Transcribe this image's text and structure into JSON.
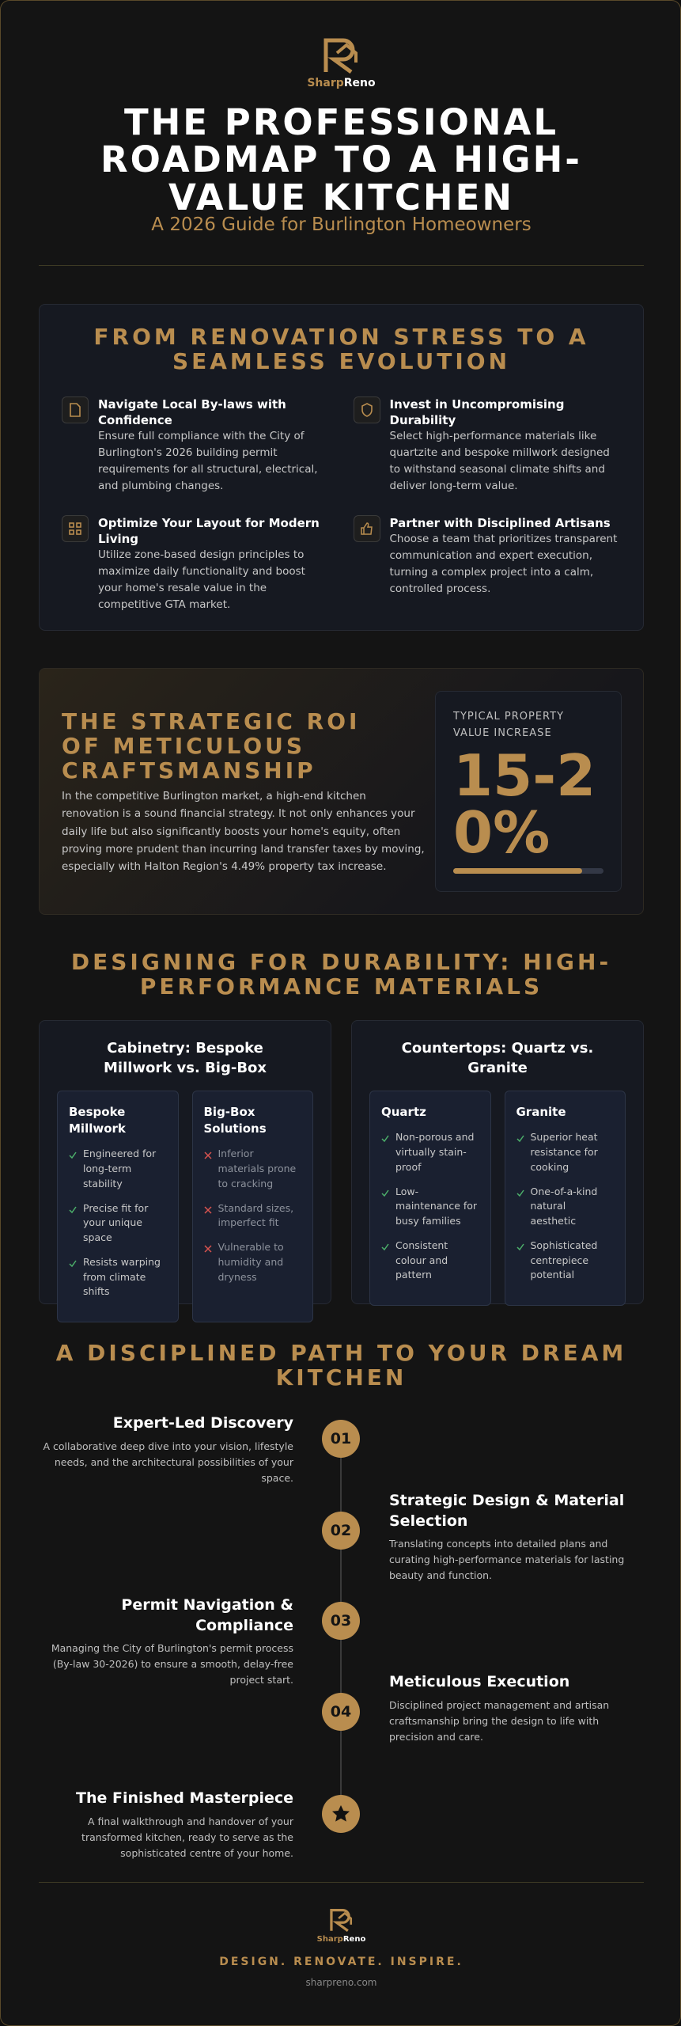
{
  "header": {
    "brand_first": "Sharp",
    "brand_second": "Reno",
    "title": "THE PROFESSIONAL ROADMAP TO A HIGH-VALUE KITCHEN",
    "subtitle": "A 2026 Guide for Burlington Homeowners"
  },
  "evolution": {
    "heading": "FROM RENOVATION STRESS TO A SEAMLESS EVOLUTION",
    "items": [
      {
        "title": "Navigate Local By-laws with Confidence",
        "text": "Ensure full compliance with the City of Burlington's 2026 building permit requirements for all structural, electrical, and plumbing changes."
      },
      {
        "title": "Invest in Uncompromising Durability",
        "text": "Select high-performance materials like quartzite and bespoke millwork designed to withstand seasonal climate shifts and deliver long-term value."
      },
      {
        "title": "Optimize Your Layout for Modern Living",
        "text": "Utilize zone-based design principles to maximize daily functionality and boost your home's resale value in the competitive GTA market."
      },
      {
        "title": "Partner with Disciplined Artisans",
        "text": "Choose a team that prioritizes transparent communication and expert execution, turning a complex project into a calm, controlled process."
      }
    ]
  },
  "roi": {
    "heading": "THE STRATEGIC ROI OF METICULOUS CRAFTSMANSHIP",
    "text": "In the competitive Burlington market, a high-end kitchen renovation is a sound financial strategy. It not only enhances your daily life but also significantly boosts your home's equity, often proving more prudent than incurring land transfer taxes by moving, especially with Halton Region's 4.49% property tax increase.",
    "stat_label": "TYPICAL PROPERTY VALUE INCREASE",
    "stat_value": "15-20%"
  },
  "materials": {
    "heading": "DESIGNING FOR DURABILITY: HIGH-PERFORMANCE MATERIALS",
    "comparisons": [
      {
        "title": "Cabinetry: Bespoke Millwork vs. Big-Box",
        "options": [
          {
            "name": "Bespoke Millwork",
            "marker_color": "#4caf6a",
            "points": [
              "Engineered for long-term stability",
              "Precise fit for your unique space",
              "Resists warping from climate shifts"
            ]
          },
          {
            "name": "Big-Box Solutions",
            "marker_color": "#d9534f",
            "points": [
              "Inferior materials prone to cracking",
              "Standard sizes, imperfect fit",
              "Vulnerable to humidity and dryness"
            ]
          }
        ]
      },
      {
        "title": "Countertops: Quartz vs. Granite",
        "options": [
          {
            "name": "Quartz",
            "marker_color": "#4caf6a",
            "points": [
              "Non-porous and virtually stain-proof",
              "Low-maintenance for busy families",
              "Consistent colour and pattern"
            ]
          },
          {
            "name": "Granite",
            "marker_color": "#4caf6a",
            "points": [
              "Superior heat resistance for cooking",
              "One-of-a-kind natural aesthetic",
              "Sophisticated centrepiece potential"
            ]
          }
        ]
      }
    ]
  },
  "path": {
    "heading": "A DISCIPLINED PATH TO YOUR DREAM KITCHEN",
    "steps": [
      {
        "number": "01",
        "title": "Expert-Led Discovery",
        "text": "A collaborative deep dive into your vision, lifestyle needs, and the architectural possibilities of your space."
      },
      {
        "number": "02",
        "title": "Strategic Design & Material Selection",
        "text": "Translating concepts into detailed plans and curating high-performance materials for lasting beauty and function."
      },
      {
        "number": "03",
        "title": "Permit Navigation & Compliance",
        "text": "Managing the City of Burlington's permit process (By-law 30-2026) to ensure a smooth, delay-free project start."
      },
      {
        "number": "04",
        "title": "Meticulous Execution",
        "text": "Disciplined project management and artisan craftsmanship bring the design to life with precision and care."
      },
      {
        "title": "The Finished Masterpiece",
        "text": "A final walkthrough and handover of your transformed kitchen, ready to serve as the sophisticated centre of your home."
      }
    ]
  },
  "footer": {
    "brand_first": "Sharp",
    "brand_second": "Reno",
    "tagline": "DESIGN. RENOVATE. INSPIRE.",
    "url": "sharpreno.com"
  }
}
